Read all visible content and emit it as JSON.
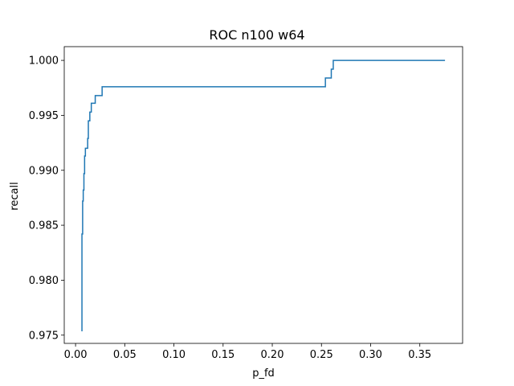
{
  "chart_data": {
    "type": "line",
    "title": "ROC n100  w64",
    "xlabel": "p_fd",
    "ylabel": "recall",
    "xlim": [
      -0.0115,
      0.3935
    ],
    "ylim": [
      0.97425,
      1.00125
    ],
    "xticks": [
      0.0,
      0.05,
      0.1,
      0.15,
      0.2,
      0.25,
      0.3,
      0.35
    ],
    "xtick_labels": [
      "0.00",
      "0.05",
      "0.10",
      "0.15",
      "0.20",
      "0.25",
      "0.30",
      "0.35"
    ],
    "yticks": [
      0.975,
      0.98,
      0.985,
      0.99,
      0.995,
      1.0
    ],
    "ytick_labels": [
      "0.975",
      "0.980",
      "0.985",
      "0.990",
      "0.995",
      "1.000"
    ],
    "grid": false,
    "legend": "none",
    "series": [
      {
        "color": "#1f77b4",
        "x": [
          0.0065,
          0.0065,
          0.0072,
          0.0072,
          0.0078,
          0.0078,
          0.0085,
          0.0085,
          0.0092,
          0.0092,
          0.01,
          0.01,
          0.0123,
          0.0123,
          0.013,
          0.013,
          0.0145,
          0.0145,
          0.016,
          0.016,
          0.02,
          0.02,
          0.027,
          0.027,
          0.0305,
          0.0305,
          0.254,
          0.254,
          0.26,
          0.26,
          0.262,
          0.262,
          0.375
        ],
        "y": [
          0.9754,
          0.9842,
          0.9842,
          0.9872,
          0.9872,
          0.9882,
          0.9882,
          0.9897,
          0.9897,
          0.9913,
          0.9913,
          0.992,
          0.992,
          0.9929,
          0.9929,
          0.9945,
          0.9945,
          0.9953,
          0.9953,
          0.9961,
          0.9961,
          0.9968,
          0.9968,
          0.9976,
          0.9976,
          0.9976,
          0.9976,
          0.9984,
          0.9984,
          0.9992,
          0.9992,
          1.0,
          1.0
        ]
      }
    ]
  }
}
